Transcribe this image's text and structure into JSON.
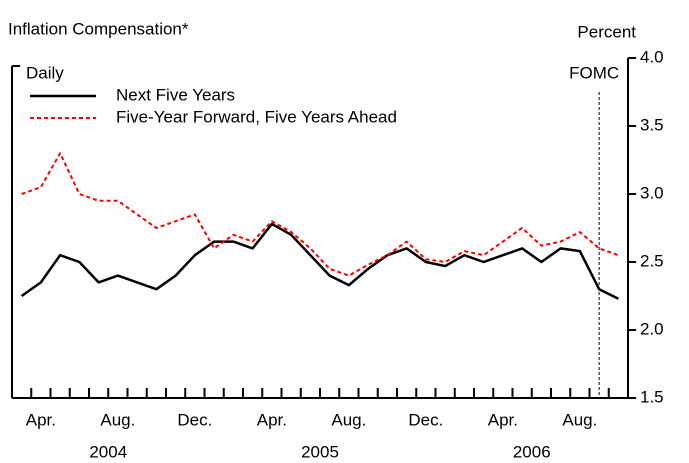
{
  "chart_data": {
    "type": "line",
    "title": "Inflation Compensation*",
    "y_label": "Percent",
    "legend_title": "Daily",
    "x": [
      "2004-03",
      "2004-04",
      "2004-05",
      "2004-06",
      "2004-07",
      "2004-08",
      "2004-09",
      "2004-10",
      "2004-11",
      "2004-12",
      "2005-01",
      "2005-02",
      "2005-03",
      "2005-04",
      "2005-05",
      "2005-06",
      "2005-07",
      "2005-08",
      "2005-09",
      "2005-10",
      "2005-11",
      "2005-12",
      "2006-01",
      "2006-02",
      "2006-03",
      "2006-04",
      "2006-05",
      "2006-06",
      "2006-07",
      "2006-08",
      "2006-09",
      "2006-10"
    ],
    "xlim": [
      "2004-03",
      "2006-10"
    ],
    "xticks": [
      {
        "value": "2004-04",
        "label": "Apr."
      },
      {
        "value": "2004-08",
        "label": "Aug."
      },
      {
        "value": "2004-12",
        "label": "Dec."
      },
      {
        "value": "2005-04",
        "label": "Apr."
      },
      {
        "value": "2005-08",
        "label": "Aug."
      },
      {
        "value": "2005-12",
        "label": "Dec."
      },
      {
        "value": "2006-04",
        "label": "Apr."
      },
      {
        "value": "2006-08",
        "label": "Aug."
      }
    ],
    "year_labels": [
      "2004",
      "2005",
      "2006"
    ],
    "series": [
      {
        "name": "Next Five Years",
        "color": "#000000",
        "dash": "solid",
        "values": [
          2.25,
          2.35,
          2.55,
          2.5,
          2.35,
          2.4,
          2.35,
          2.3,
          2.4,
          2.55,
          2.65,
          2.65,
          2.6,
          2.78,
          2.7,
          2.55,
          2.4,
          2.33,
          2.45,
          2.55,
          2.6,
          2.5,
          2.47,
          2.55,
          2.5,
          2.55,
          2.6,
          2.5,
          2.6,
          2.58,
          2.3,
          2.23
        ]
      },
      {
        "name": "Five-Year Forward, Five Years Ahead",
        "color": "#ff0000",
        "dash": "dashed",
        "values": [
          3.0,
          3.05,
          3.3,
          3.0,
          2.95,
          2.95,
          2.85,
          2.75,
          2.8,
          2.85,
          2.6,
          2.7,
          2.65,
          2.8,
          2.72,
          2.6,
          2.45,
          2.4,
          2.48,
          2.55,
          2.65,
          2.52,
          2.5,
          2.58,
          2.55,
          2.65,
          2.75,
          2.62,
          2.65,
          2.72,
          2.6,
          2.55
        ]
      }
    ],
    "ylim": [
      1.5,
      4.0
    ],
    "yticks": [
      {
        "value": 1.5,
        "label": "1.5"
      },
      {
        "value": 2.0,
        "label": "2.0"
      },
      {
        "value": 2.5,
        "label": "2.5"
      },
      {
        "value": 3.0,
        "label": "3.0"
      },
      {
        "value": 3.5,
        "label": "3.5"
      },
      {
        "value": 4.0,
        "label": "4.0"
      }
    ],
    "annotations": [
      {
        "label": "FOMC",
        "x": "2006-09"
      }
    ]
  }
}
